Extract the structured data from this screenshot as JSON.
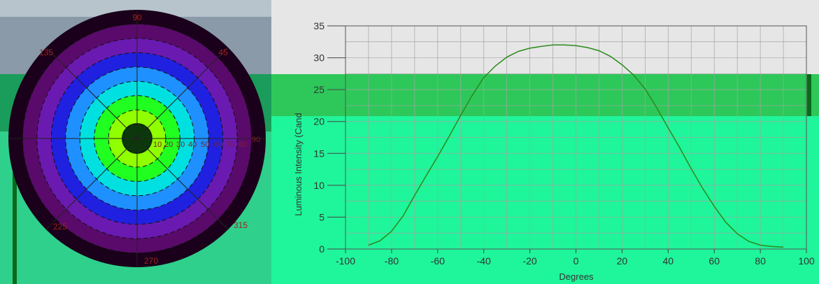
{
  "polar": {
    "angle_labels": [
      "90",
      "135",
      "45",
      "225",
      "315",
      "270"
    ],
    "radial_labels": [
      "10",
      "20",
      "30",
      "40",
      "50",
      "60",
      "70",
      "80",
      "90"
    ],
    "colors": [
      "#1a001a",
      "#5a0a6b",
      "#6a1ab0",
      "#2020e0",
      "#1e90ff",
      "#00e0e0",
      "#20ff20",
      "#90ff00",
      "#20ff40"
    ]
  },
  "chart_data": {
    "type": "line",
    "xlabel": "Degrees",
    "ylabel": "Luminous Intensity (Cand",
    "xlim": [
      -100,
      100
    ],
    "ylim": [
      0,
      35
    ],
    "xticks": [
      -100,
      -80,
      -60,
      -40,
      -20,
      0,
      20,
      40,
      60,
      80,
      100
    ],
    "yticks": [
      0,
      5,
      10,
      15,
      20,
      25,
      30,
      35
    ],
    "grid": true,
    "series": [
      {
        "x": [
          -90,
          -85,
          -80,
          -75,
          -70,
          -65,
          -60,
          -55,
          -50,
          -45,
          -40,
          -35,
          -30,
          -25,
          -20,
          -15,
          -10,
          -5,
          0,
          5,
          10,
          15,
          20,
          25,
          30,
          35,
          40,
          45,
          50,
          55,
          60,
          65,
          70,
          75,
          80,
          85,
          90
        ],
        "y": [
          0.6,
          1.3,
          2.8,
          5.2,
          8.4,
          11.5,
          14.5,
          17.7,
          21.0,
          24.1,
          26.9,
          28.7,
          30.1,
          31.0,
          31.5,
          31.8,
          32.0,
          32.0,
          31.9,
          31.6,
          31.1,
          30.2,
          28.9,
          27.3,
          25.1,
          22.2,
          19.0,
          15.9,
          12.6,
          9.5,
          6.7,
          4.2,
          2.4,
          1.2,
          0.6,
          0.4,
          0.3
        ],
        "color": "#2b8a1a"
      }
    ]
  }
}
